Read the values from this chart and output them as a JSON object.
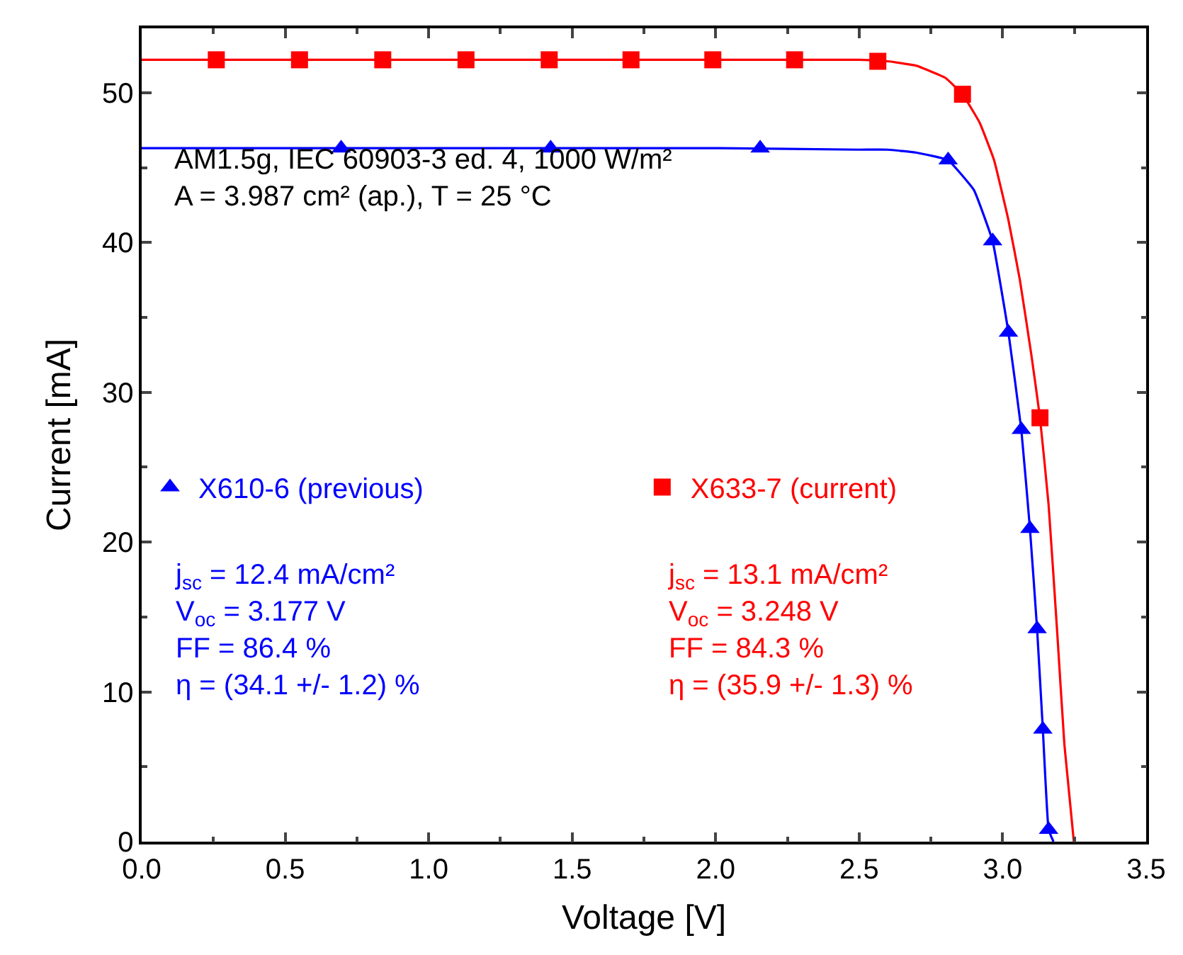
{
  "chart_data": {
    "type": "line",
    "xlabel": "Voltage [V]",
    "ylabel": "Current [mA]",
    "xlim": [
      0,
      3.5
    ],
    "ylim": [
      0,
      54.3
    ],
    "xticks": [
      {
        "value": 0,
        "label": "0.0"
      },
      {
        "value": 0.5,
        "label": "0.5"
      },
      {
        "value": 1,
        "label": "1.0"
      },
      {
        "value": 1.5,
        "label": "1.5"
      },
      {
        "value": 2,
        "label": "2.0"
      },
      {
        "value": 2.5,
        "label": "2.5"
      },
      {
        "value": 3,
        "label": "3.0"
      },
      {
        "value": 3.5,
        "label": "3.5"
      }
    ],
    "yticks": [
      0,
      10,
      20,
      30,
      40,
      50
    ],
    "legend": "bottom left",
    "series": [
      {
        "marker": "none",
        "color": "#0000ff",
        "x": [
          0,
          0.5,
          1.0,
          1.5,
          2.0,
          2.5,
          2.6,
          2.7,
          2.81,
          2.9,
          2.965,
          3.02,
          3.065,
          3.095,
          3.12,
          3.14,
          3.16,
          3.177
        ],
        "values": [
          46.3,
          46.3,
          46.3,
          46.3,
          46.3,
          46.2,
          46.2,
          46.0,
          45.5,
          43.5,
          40.1,
          34.0,
          27.5,
          20.9,
          14.2,
          7.5,
          0.8,
          0
        ]
      },
      {
        "marker": "none",
        "color": "#ff0000",
        "x": [
          0,
          0.5,
          1.0,
          1.5,
          2.0,
          2.5,
          2.6,
          2.7,
          2.8,
          2.86,
          2.92,
          2.97,
          3.02,
          3.06,
          3.1,
          3.13,
          3.16,
          3.19,
          3.215,
          3.248
        ],
        "values": [
          52.2,
          52.2,
          52.2,
          52.2,
          52.2,
          52.2,
          52.1,
          51.8,
          51.0,
          49.9,
          48.0,
          45.5,
          41.5,
          37.5,
          32.5,
          28.3,
          22.5,
          14.0,
          6.5,
          0
        ]
      },
      {
        "type": "scatter",
        "marker": "triangle",
        "name": "X610-6 (previous)",
        "color": "#0000ff",
        "x": [
          0.695,
          1.425,
          2.155,
          2.81,
          2.965,
          3.02,
          3.065,
          3.095,
          3.12,
          3.14,
          3.16
        ],
        "values": [
          46.3,
          46.3,
          46.3,
          45.5,
          40.1,
          34.0,
          27.5,
          20.9,
          14.2,
          7.5,
          0.8
        ]
      },
      {
        "type": "scatter",
        "marker": "square",
        "name": "X633-7 (current)",
        "color": "#ff0000",
        "x": [
          0.26,
          0.55,
          0.84,
          1.13,
          1.42,
          1.705,
          1.99,
          2.275,
          2.565,
          2.86,
          3.13
        ],
        "values": [
          52.2,
          52.2,
          52.2,
          52.2,
          52.2,
          52.2,
          52.2,
          52.2,
          52.1,
          49.9,
          28.3
        ]
      }
    ],
    "annotations": [
      "AM1.5g, IEC 60903-3 ed. 4, 1000 W/m²\nA = 3.987 cm² (ap.), T = 25 °C",
      "j$_{sc}$ = 12.4 mA/cm²\nV$_{oc}$ = 3.177 V\nFF = 86.4 %\nη = (34.1 +/- 1.2) %",
      "j$_{sc}$ = 13.1 mA/cm²\nV$_{oc}$ = 3.248 V\nFF = 84.3 %\nη = (35.9 +/- 1.3) %"
    ]
  }
}
